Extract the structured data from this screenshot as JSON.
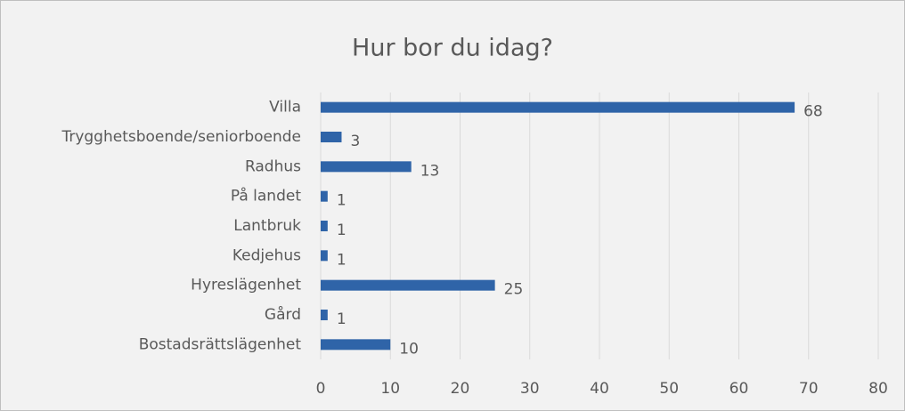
{
  "chart_data": {
    "type": "bar",
    "orientation": "horizontal",
    "title": "Hur bor du idag?",
    "categories": [
      "Villa",
      "Trygghetsboende/seniorboende",
      "Radhus",
      "På landet",
      "Lantbruk",
      "Kedjehus",
      "Hyreslägenhet",
      "Gård",
      "Bostadsrättslägenhet"
    ],
    "values": [
      68,
      3,
      13,
      1,
      1,
      1,
      25,
      1,
      10
    ],
    "color": "#2f64a8",
    "xlim": [
      0,
      80
    ],
    "xticks": [
      0,
      10,
      20,
      30,
      40,
      50,
      60,
      70,
      80
    ],
    "grid": true,
    "data_labels": true
  }
}
